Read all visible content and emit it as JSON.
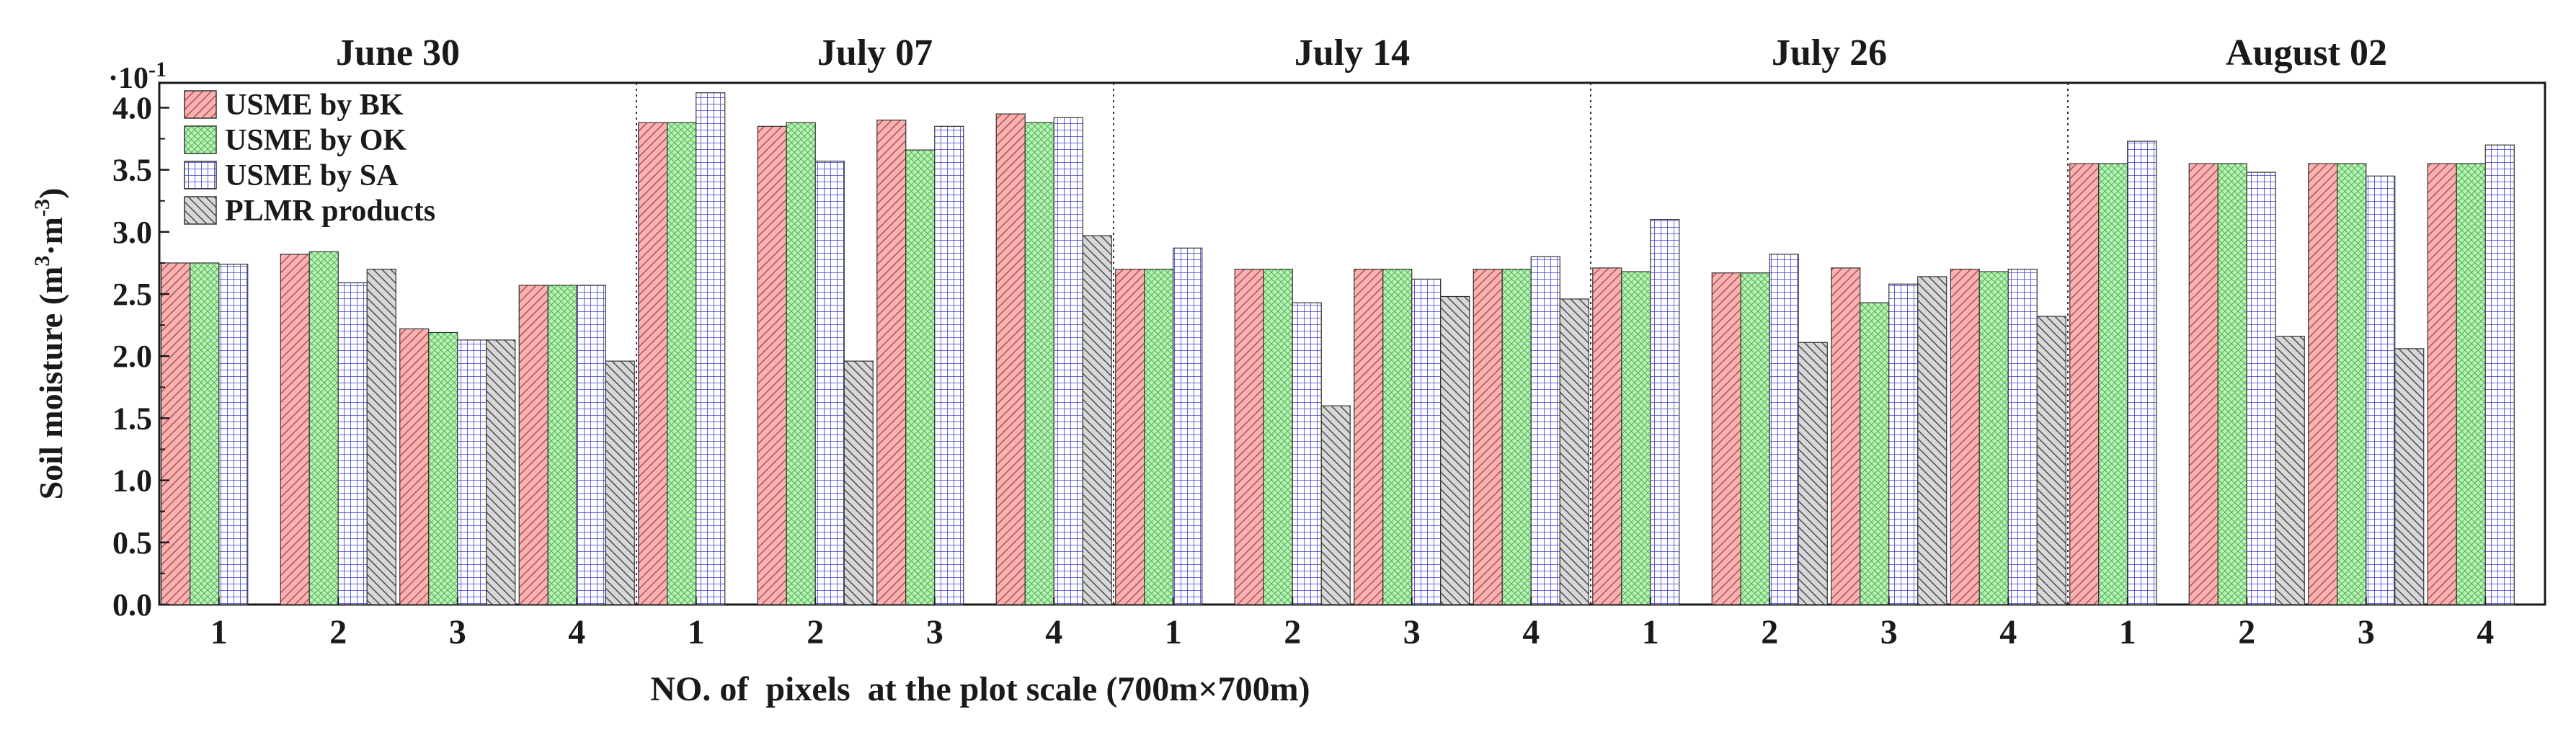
{
  "chart_data": {
    "type": "bar",
    "title": "",
    "xlabel": "NO. of  pixels  at the plot scale (700m×700m)",
    "ylabel": "Soil moisture (m³·m⁻³)",
    "ylabel_parts": {
      "main": "Soil moisture (m",
      "sup1": "3",
      "mid": "·m",
      "sup2": "-3",
      "end": ")"
    },
    "y_multiplier": "·10",
    "y_multiplier_exp": "-1",
    "ylim": [
      0,
      4.2
    ],
    "yticks": [
      "0.0",
      "0.5",
      "1.0",
      "1.5",
      "2.0",
      "2.5",
      "3.0",
      "3.5",
      "4.0"
    ],
    "ytick_values": [
      0,
      0.5,
      1.0,
      1.5,
      2.0,
      2.5,
      3.0,
      3.5,
      4.0
    ],
    "grid": false,
    "legend_position": "top-left",
    "groups": [
      {
        "name": "June 30",
        "categories": [
          "1",
          "2",
          "3",
          "4"
        ]
      },
      {
        "name": "July 07",
        "categories": [
          "1",
          "2",
          "3",
          "4"
        ]
      },
      {
        "name": "July 14",
        "categories": [
          "1",
          "2",
          "3",
          "4"
        ]
      },
      {
        "name": "July 26",
        "categories": [
          "1",
          "2",
          "3",
          "4"
        ]
      },
      {
        "name": "August 02",
        "categories": [
          "1",
          "2",
          "3",
          "4"
        ]
      }
    ],
    "series": [
      {
        "name": "USME by BK",
        "color": "#f2a0a0",
        "pattern": "diag-right",
        "values": [
          2.75,
          2.82,
          2.22,
          2.57,
          3.88,
          3.85,
          3.9,
          3.95,
          2.7,
          2.7,
          2.7,
          2.7,
          2.71,
          2.67,
          2.71,
          2.7,
          3.55,
          3.55,
          3.55,
          3.55
        ]
      },
      {
        "name": "USME by OK",
        "color": "#a6f2a6",
        "pattern": "cross",
        "values": [
          2.75,
          2.84,
          2.19,
          2.57,
          3.88,
          3.88,
          3.66,
          3.88,
          2.7,
          2.7,
          2.7,
          2.7,
          2.68,
          2.67,
          2.43,
          2.68,
          3.55,
          3.55,
          3.55,
          3.55
        ]
      },
      {
        "name": "USME by SA",
        "color": "#a0a0f0",
        "pattern": "grid",
        "values": [
          2.74,
          2.59,
          2.13,
          2.57,
          4.12,
          3.57,
          3.85,
          3.92,
          2.87,
          2.43,
          2.62,
          2.8,
          3.1,
          2.82,
          2.58,
          2.7,
          3.73,
          3.48,
          3.45,
          3.7
        ]
      },
      {
        "name": "PLMR products",
        "color": "#b8b8b8",
        "pattern": "diag-left",
        "values": [
          null,
          2.7,
          2.13,
          1.96,
          null,
          1.96,
          null,
          2.97,
          null,
          1.6,
          2.48,
          2.46,
          null,
          2.11,
          2.64,
          2.32,
          null,
          2.16,
          2.06,
          null
        ]
      }
    ]
  }
}
